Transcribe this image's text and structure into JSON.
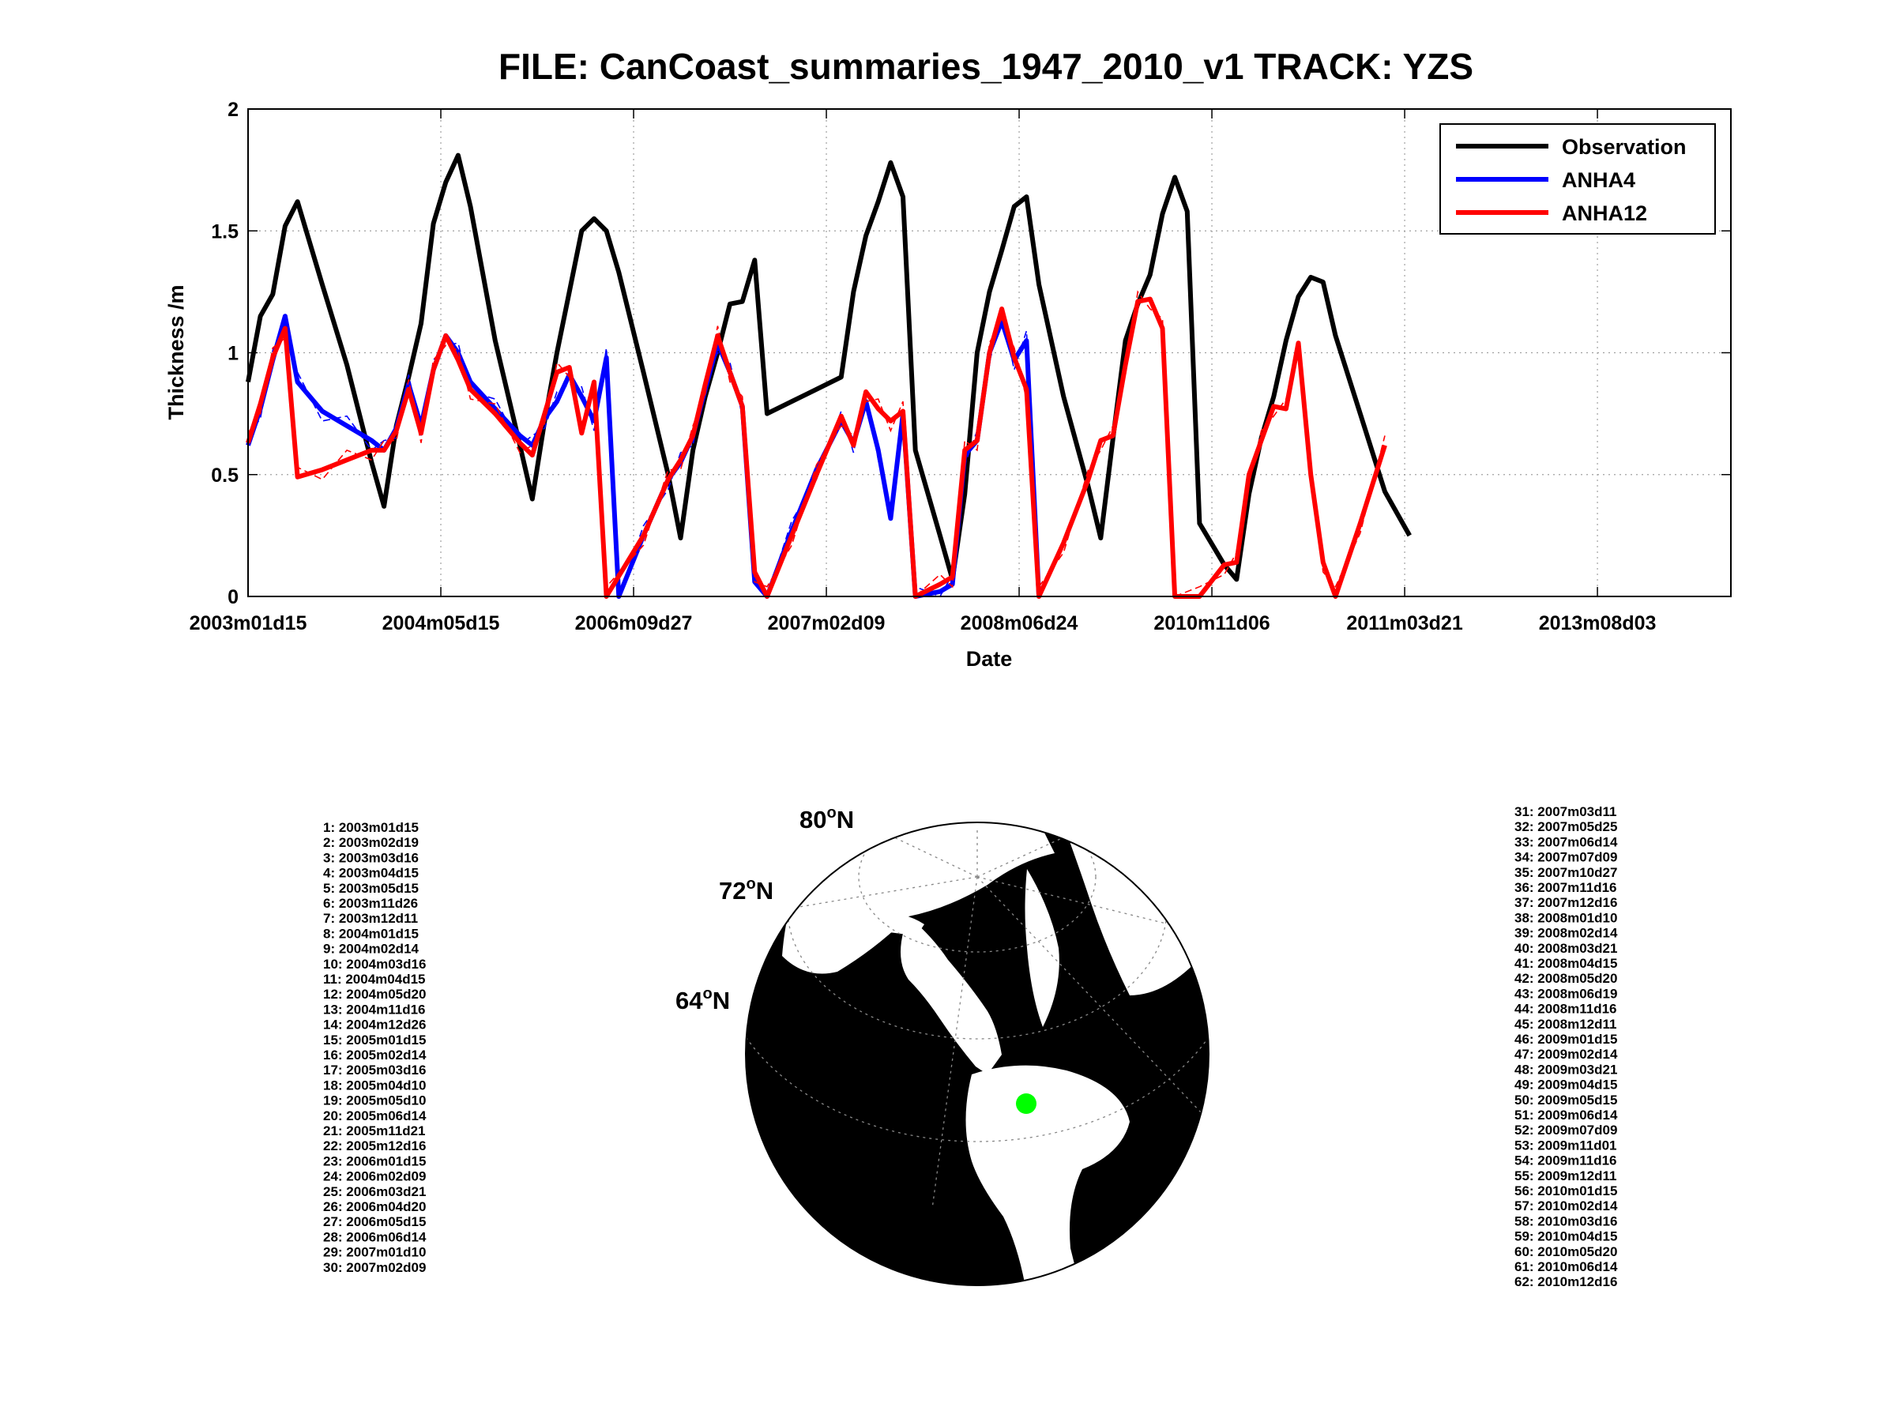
{
  "title": "FILE: CanCoast_summaries_1947_2010_v1 TRACK: YZS",
  "chart_data": {
    "type": "line",
    "xlabel": "Date",
    "ylabel": "Thickness /m",
    "ylim": [
      0,
      2
    ],
    "yticks": [
      "0",
      "0.5",
      "1",
      "1.5",
      "2"
    ],
    "xticks": [
      "2003m01d15",
      "2004m05d15",
      "2006m09d27",
      "2007m02d09",
      "2008m06d24",
      "2010m11d06",
      "2011m03d21",
      "2013m08d03"
    ],
    "grid": true,
    "legend_position": "top-right",
    "series": [
      {
        "name": "Observation",
        "color": "#000000",
        "points": [
          [
            0,
            0.88
          ],
          [
            1,
            1.15
          ],
          [
            2,
            1.24
          ],
          [
            3,
            1.52
          ],
          [
            4,
            1.62
          ],
          [
            6,
            1.28
          ],
          [
            8,
            0.95
          ],
          [
            10,
            0.55
          ],
          [
            11,
            0.37
          ],
          [
            12,
            0.7
          ],
          [
            13,
            0.9
          ],
          [
            14,
            1.12
          ],
          [
            15,
            1.53
          ],
          [
            16,
            1.7
          ],
          [
            17,
            1.81
          ],
          [
            18,
            1.6
          ],
          [
            20,
            1.05
          ],
          [
            22,
            0.62
          ],
          [
            23,
            0.4
          ],
          [
            24,
            0.72
          ],
          [
            25,
            1.0
          ],
          [
            26,
            1.25
          ],
          [
            27,
            1.5
          ],
          [
            28,
            1.55
          ],
          [
            29,
            1.5
          ],
          [
            30,
            1.33
          ],
          [
            32,
            0.92
          ],
          [
            34,
            0.5
          ],
          [
            35,
            0.24
          ],
          [
            36,
            0.6
          ],
          [
            37,
            0.82
          ],
          [
            38,
            1.0
          ],
          [
            39,
            1.2
          ],
          [
            40,
            1.21
          ],
          [
            41,
            1.38
          ],
          [
            42,
            0.75
          ],
          [
            44,
            0.8
          ],
          [
            46,
            0.85
          ],
          [
            48,
            0.9
          ],
          [
            49,
            1.25
          ],
          [
            50,
            1.48
          ],
          [
            51,
            1.62
          ],
          [
            52,
            1.78
          ],
          [
            53,
            1.64
          ],
          [
            54,
            0.6
          ],
          [
            56,
            0.25
          ],
          [
            57,
            0.07
          ],
          [
            58,
            0.42
          ],
          [
            59,
            1.0
          ],
          [
            60,
            1.25
          ],
          [
            61,
            1.42
          ],
          [
            62,
            1.6
          ],
          [
            63,
            1.64
          ],
          [
            64,
            1.28
          ],
          [
            66,
            0.82
          ],
          [
            68,
            0.45
          ],
          [
            69,
            0.24
          ],
          [
            70,
            0.65
          ],
          [
            71,
            1.05
          ],
          [
            72,
            1.2
          ],
          [
            73,
            1.32
          ],
          [
            74,
            1.57
          ],
          [
            75,
            1.72
          ],
          [
            76,
            1.58
          ],
          [
            77,
            0.3
          ],
          [
            79,
            0.13
          ],
          [
            80,
            0.07
          ],
          [
            81,
            0.42
          ],
          [
            82,
            0.65
          ],
          [
            83,
            0.82
          ],
          [
            84,
            1.05
          ],
          [
            85,
            1.23
          ],
          [
            86,
            1.31
          ],
          [
            87,
            1.29
          ],
          [
            88,
            1.07
          ],
          [
            90,
            0.75
          ],
          [
            92,
            0.43
          ],
          [
            94,
            0.25
          ]
        ]
      },
      {
        "name": "ANHA4",
        "color": "#0000ff",
        "points": [
          [
            0,
            0.62
          ],
          [
            1,
            0.77
          ],
          [
            2,
            0.97
          ],
          [
            3,
            1.15
          ],
          [
            4,
            0.88
          ],
          [
            6,
            0.76
          ],
          [
            8,
            0.7
          ],
          [
            10,
            0.64
          ],
          [
            11,
            0.6
          ],
          [
            12,
            0.69
          ],
          [
            13,
            0.87
          ],
          [
            14,
            0.7
          ],
          [
            15,
            0.93
          ],
          [
            16,
            1.07
          ],
          [
            17,
            1.0
          ],
          [
            18,
            0.88
          ],
          [
            20,
            0.77
          ],
          [
            22,
            0.66
          ],
          [
            23,
            0.62
          ],
          [
            24,
            0.73
          ],
          [
            25,
            0.8
          ],
          [
            26,
            0.91
          ],
          [
            27,
            0.82
          ],
          [
            28,
            0.72
          ],
          [
            29,
            0.98
          ],
          [
            30,
            0.0
          ],
          [
            32,
            0.25
          ],
          [
            34,
            0.48
          ],
          [
            35,
            0.55
          ],
          [
            36,
            0.66
          ],
          [
            37,
            0.85
          ],
          [
            38,
            1.04
          ],
          [
            39,
            0.92
          ],
          [
            40,
            0.78
          ],
          [
            41,
            0.06
          ],
          [
            42,
            0.0
          ],
          [
            44,
            0.27
          ],
          [
            46,
            0.52
          ],
          [
            48,
            0.72
          ],
          [
            49,
            0.63
          ],
          [
            50,
            0.8
          ],
          [
            51,
            0.6
          ],
          [
            52,
            0.32
          ],
          [
            53,
            0.75
          ],
          [
            54,
            0.0
          ],
          [
            56,
            0.02
          ],
          [
            57,
            0.05
          ],
          [
            58,
            0.58
          ],
          [
            59,
            0.64
          ],
          [
            60,
            1.0
          ],
          [
            61,
            1.13
          ],
          [
            62,
            0.97
          ],
          [
            63,
            1.05
          ],
          [
            64,
            0.0
          ]
        ]
      },
      {
        "name": "ANHA12",
        "color": "#ff0000",
        "points": [
          [
            0,
            0.63
          ],
          [
            1,
            0.79
          ],
          [
            2,
            0.98
          ],
          [
            3,
            1.1
          ],
          [
            4,
            0.49
          ],
          [
            6,
            0.52
          ],
          [
            8,
            0.56
          ],
          [
            10,
            0.6
          ],
          [
            11,
            0.6
          ],
          [
            12,
            0.68
          ],
          [
            13,
            0.85
          ],
          [
            14,
            0.67
          ],
          [
            15,
            0.93
          ],
          [
            16,
            1.07
          ],
          [
            17,
            0.97
          ],
          [
            18,
            0.85
          ],
          [
            20,
            0.75
          ],
          [
            22,
            0.63
          ],
          [
            23,
            0.58
          ],
          [
            24,
            0.75
          ],
          [
            25,
            0.92
          ],
          [
            26,
            0.94
          ],
          [
            27,
            0.67
          ],
          [
            28,
            0.88
          ],
          [
            29,
            0.0
          ],
          [
            32,
            0.25
          ],
          [
            34,
            0.48
          ],
          [
            35,
            0.56
          ],
          [
            36,
            0.66
          ],
          [
            37,
            0.87
          ],
          [
            38,
            1.07
          ],
          [
            39,
            0.92
          ],
          [
            40,
            0.78
          ],
          [
            41,
            0.1
          ],
          [
            42,
            0.0
          ],
          [
            44,
            0.25
          ],
          [
            46,
            0.5
          ],
          [
            48,
            0.74
          ],
          [
            49,
            0.62
          ],
          [
            50,
            0.84
          ],
          [
            51,
            0.77
          ],
          [
            52,
            0.72
          ],
          [
            53,
            0.76
          ],
          [
            54,
            0.0
          ],
          [
            56,
            0.05
          ],
          [
            57,
            0.08
          ],
          [
            58,
            0.6
          ],
          [
            59,
            0.64
          ],
          [
            60,
            1.0
          ],
          [
            61,
            1.18
          ],
          [
            62,
            0.98
          ],
          [
            63,
            0.85
          ],
          [
            64,
            0.0
          ],
          [
            66,
            0.22
          ],
          [
            68,
            0.48
          ],
          [
            69,
            0.64
          ],
          [
            70,
            0.66
          ],
          [
            71,
            0.95
          ],
          [
            72,
            1.21
          ],
          [
            73,
            1.22
          ],
          [
            74,
            1.1
          ],
          [
            75,
            0.0
          ],
          [
            77,
            0.0
          ],
          [
            79,
            0.13
          ],
          [
            80,
            0.14
          ],
          [
            81,
            0.5
          ],
          [
            82,
            0.64
          ],
          [
            83,
            0.78
          ],
          [
            84,
            0.77
          ],
          [
            85,
            1.04
          ],
          [
            86,
            0.5
          ],
          [
            87,
            0.14
          ],
          [
            88,
            0.0
          ],
          [
            90,
            0.3
          ],
          [
            92,
            0.62
          ]
        ]
      }
    ]
  },
  "map": {
    "latitude_labels": [
      "80",
      "72",
      "64"
    ],
    "latitude_suffix": "N",
    "degree_symbol": "o",
    "marker_color": "#00ff00",
    "land_color": "#000000",
    "water_color": "#ffffff"
  },
  "dates_left": [
    "1: 2003m01d15",
    "2: 2003m02d19",
    "3: 2003m03d16",
    "4: 2003m04d15",
    "5: 2003m05d15",
    "6: 2003m11d26",
    "7: 2003m12d11",
    "8: 2004m01d15",
    "9: 2004m02d14",
    "10: 2004m03d16",
    "11: 2004m04d15",
    "12: 2004m05d20",
    "13: 2004m11d16",
    "14: 2004m12d26",
    "15: 2005m01d15",
    "16: 2005m02d14",
    "17: 2005m03d16",
    "18: 2005m04d10",
    "19: 2005m05d10",
    "20: 2005m06d14",
    "21: 2005m11d21",
    "22: 2005m12d16",
    "23: 2006m01d15",
    "24: 2006m02d09",
    "25: 2006m03d21",
    "26: 2006m04d20",
    "27: 2006m05d15",
    "28: 2006m06d14",
    "29: 2007m01d10",
    "30: 2007m02d09"
  ],
  "dates_right": [
    "31: 2007m03d11",
    "32: 2007m05d25",
    "33: 2007m06d14",
    "34: 2007m07d09",
    "35: 2007m10d27",
    "36: 2007m11d16",
    "37: 2007m12d16",
    "38: 2008m01d10",
    "39: 2008m02d14",
    "40: 2008m03d21",
    "41: 2008m04d15",
    "42: 2008m05d20",
    "43: 2008m06d19",
    "44: 2008m11d16",
    "45: 2008m12d11",
    "46: 2009m01d15",
    "47: 2009m02d14",
    "48: 2009m03d21",
    "49: 2009m04d15",
    "50: 2009m05d15",
    "51: 2009m06d14",
    "52: 2009m07d09",
    "53: 2009m11d01",
    "54: 2009m11d16",
    "55: 2009m12d11",
    "56: 2010m01d15",
    "57: 2010m02d14",
    "58: 2010m03d16",
    "59: 2010m04d15",
    "60: 2010m05d20",
    "61: 2010m06d14",
    "62: 2010m12d16"
  ]
}
